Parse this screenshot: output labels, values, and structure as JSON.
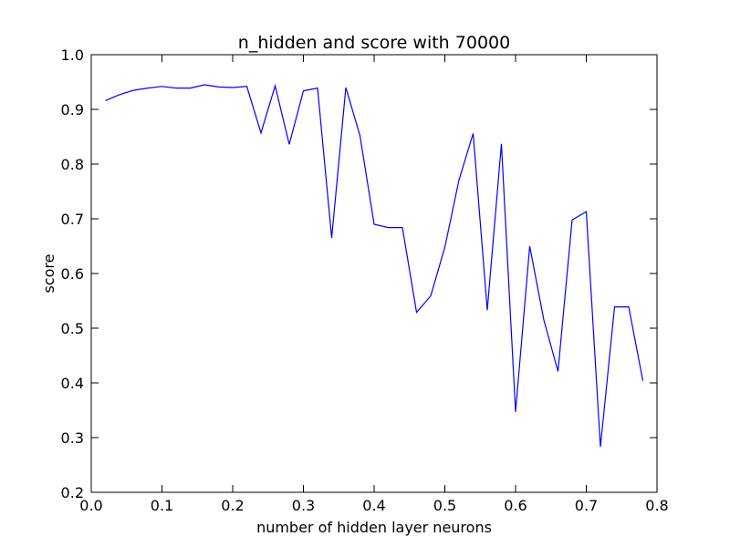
{
  "chart_data": {
    "type": "line",
    "title": "n_hidden and score with 70000",
    "xlabel": "number of hidden layer neurons",
    "ylabel": "score",
    "xlim": [
      0.0,
      0.8
    ],
    "ylim": [
      0.2,
      1.0
    ],
    "xticks": [
      "0.0",
      "0.1",
      "0.2",
      "0.3",
      "0.4",
      "0.5",
      "0.6",
      "0.7",
      "0.8"
    ],
    "yticks": [
      "0.2",
      "0.3",
      "0.4",
      "0.5",
      "0.6",
      "0.7",
      "0.8",
      "0.9",
      "1.0"
    ],
    "grid": false,
    "series": [
      {
        "color": "#0000ff",
        "x": [
          0.02,
          0.04,
          0.06,
          0.08,
          0.1,
          0.12,
          0.14,
          0.16,
          0.18,
          0.2,
          0.22,
          0.24,
          0.26,
          0.28,
          0.3,
          0.32,
          0.34,
          0.36,
          0.38,
          0.4,
          0.42,
          0.44,
          0.46,
          0.48,
          0.5,
          0.52,
          0.54,
          0.56,
          0.58,
          0.6,
          0.62,
          0.64,
          0.66,
          0.68,
          0.7,
          0.72,
          0.74,
          0.76,
          0.78
        ],
        "y": [
          0.916,
          0.927,
          0.935,
          0.939,
          0.942,
          0.939,
          0.939,
          0.945,
          0.941,
          0.94,
          0.942,
          0.857,
          0.943,
          0.836,
          0.934,
          0.939,
          0.665,
          0.94,
          0.852,
          0.69,
          0.684,
          0.684,
          0.529,
          0.559,
          0.648,
          0.771,
          0.856,
          0.533,
          0.837,
          0.347,
          0.65,
          0.515,
          0.421,
          0.698,
          0.713,
          0.283,
          0.539,
          0.539,
          0.404
        ]
      }
    ]
  }
}
